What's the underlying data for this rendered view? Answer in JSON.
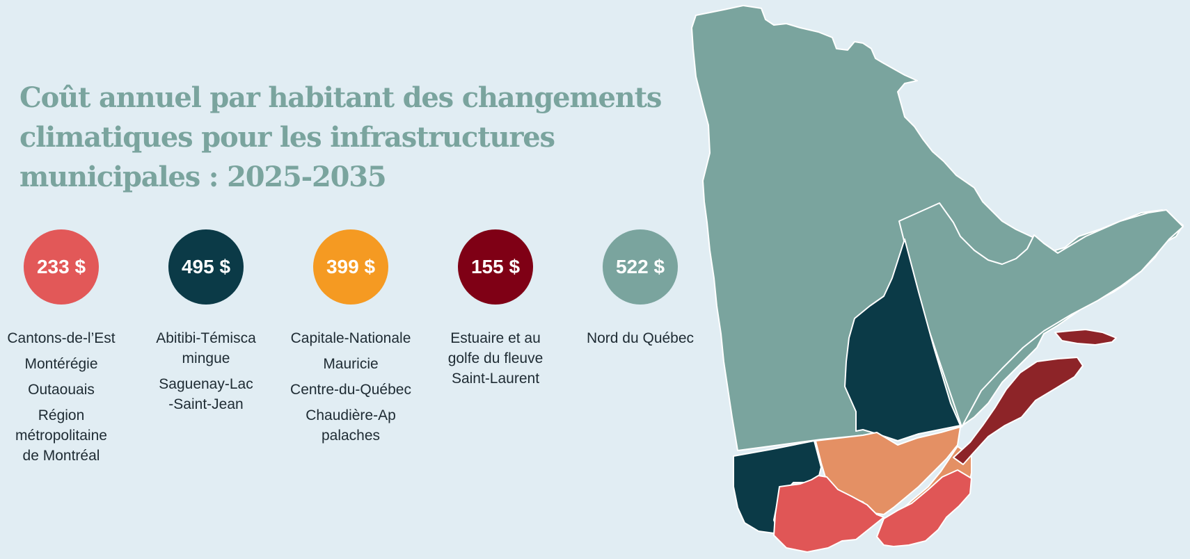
{
  "title_lines": [
    "Coût annuel par habitant des changements",
    "climatiques pour les infrastructures",
    "municipales : 2025-2035"
  ],
  "colors": {
    "background": "#e1edf3",
    "title": "#7aa49e",
    "coral": "#e25858",
    "navy": "#0b3a47",
    "orange": "#f59a22",
    "maroon": "#7f0015",
    "sage": "#7aa49e",
    "map_light_orange": "#e49064",
    "map_coral": "#e05656",
    "map_dark_red": "#8d2428"
  },
  "groups": [
    {
      "amount": "233 $",
      "color": "#e25858",
      "regions": [
        "Cantons-de-l’Est",
        "Montérégie",
        "Outaouais",
        "Région métropolitaine de Montréal"
      ]
    },
    {
      "amount": "495 $",
      "color": "#0b3a47",
      "regions": [
        "Abitibi-Témiscamingue",
        "Saguenay-Lac-Saint-Jean"
      ]
    },
    {
      "amount": "399 $",
      "color": "#f59a22",
      "regions": [
        "Capitale-Nationale",
        "Mauricie",
        "Centre-du-Québec",
        "Chaudière-Appalaches"
      ]
    },
    {
      "amount": "155 $",
      "color": "#7f0015",
      "regions": [
        "Estuaire et au golfe du fleuve Saint-Laurent"
      ]
    },
    {
      "amount": "522 $",
      "color": "#7aa49e",
      "regions": [
        "Nord du Québec"
      ]
    }
  ]
}
